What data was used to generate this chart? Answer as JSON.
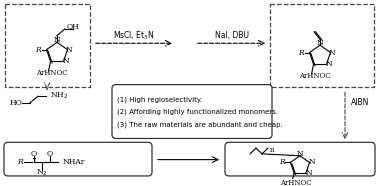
{
  "bg_color": "#ffffff",
  "fig_width": 3.78,
  "fig_height": 1.86,
  "dpi": 100,
  "arrow_top_label1": "MsCl, Et$_3$N",
  "arrow_top_label2": "NaI, DBU",
  "arrow_right_label": "AIBN",
  "center_lines": [
    "(1) High regioselectivity.",
    "(2) Affording highly functionalized monomers.",
    "(3) The raw materials are abundant and cheap."
  ]
}
